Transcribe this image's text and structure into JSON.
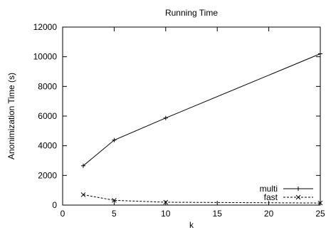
{
  "chart_data": {
    "type": "line",
    "title": "Running Time",
    "xlabel": "k",
    "ylabel": "Anonimization Time (s)",
    "xlim": [
      0,
      25
    ],
    "ylim": [
      0,
      12000
    ],
    "xticks": [
      0,
      5,
      10,
      15,
      20,
      25
    ],
    "yticks": [
      0,
      2000,
      4000,
      6000,
      8000,
      10000,
      12000
    ],
    "grid": false,
    "legend_position": "bottom-right",
    "series": [
      {
        "name": "multi",
        "x": [
          2,
          5,
          10,
          25
        ],
        "values": [
          2650,
          4380,
          5870,
          10200
        ],
        "line_style": "solid",
        "marker": "plus",
        "color": "#000000"
      },
      {
        "name": "fast",
        "x": [
          2,
          5,
          10,
          25
        ],
        "values": [
          700,
          320,
          190,
          140
        ],
        "line_style": "dashed",
        "marker": "cross",
        "color": "#000000"
      }
    ]
  }
}
